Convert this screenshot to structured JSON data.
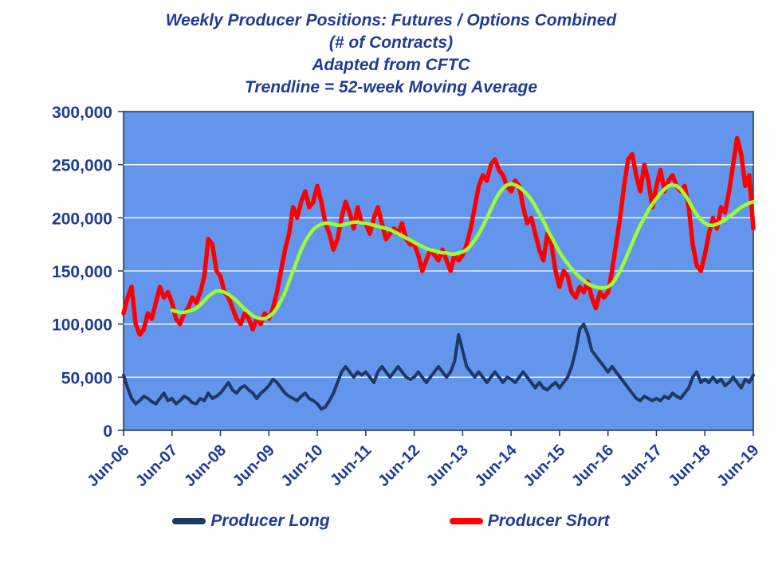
{
  "title_lines": [
    "Weekly Producer Positions: Futures / Options Combined",
    "(# of Contracts)",
    "Adapted from CFTC",
    "Trendline = 52-week Moving Average"
  ],
  "legend": {
    "items": [
      {
        "label": "Producer Long",
        "color": "#1F3864"
      },
      {
        "label": "Producer Short",
        "color": "#FF0000"
      }
    ]
  },
  "colors": {
    "plot_bg": "#6495ED",
    "grid": "#FFFFFF",
    "text": "#1E3C96",
    "axis": "#17375E"
  },
  "chart_data": {
    "type": "line",
    "title": "Weekly Producer Positions: Futures / Options Combined (# of Contracts) - Adapted from CFTC - Trendline = 52-week Moving Average",
    "xlabel": "",
    "ylabel": "",
    "x_unit": "months since Jun-2006",
    "months_total": 157,
    "x_tick_labels": [
      "Jun-06",
      "Jun-07",
      "Jun-08",
      "Jun-09",
      "Jun-10",
      "Jun-11",
      "Jun-12",
      "Jun-13",
      "Jun-14",
      "Jun-15",
      "Jun-16",
      "Jun-17",
      "Jun-18",
      "Jun-19"
    ],
    "x_tick_month_positions": [
      0,
      12,
      24,
      36,
      48,
      60,
      72,
      84,
      96,
      108,
      120,
      132,
      144,
      156
    ],
    "ylim": [
      0,
      300000
    ],
    "ytick_values": [
      0,
      50,
      100,
      150,
      200,
      250,
      300
    ],
    "ytick_labels": [
      "0",
      "50,000",
      "100,000",
      "150,000",
      "200,000",
      "250,000",
      "300,000"
    ],
    "value_unit": "contracts",
    "value_scale": 1000,
    "grid": true,
    "legend_position": "bottom",
    "series": [
      {
        "name": "Producer Long",
        "color": "#1F3864",
        "stroke_width": 4,
        "values": [
          52,
          40,
          30,
          25,
          28,
          32,
          30,
          27,
          25,
          30,
          35,
          28,
          30,
          25,
          28,
          32,
          30,
          26,
          25,
          30,
          28,
          35,
          30,
          32,
          35,
          40,
          45,
          38,
          35,
          40,
          42,
          38,
          35,
          30,
          35,
          38,
          42,
          48,
          45,
          40,
          35,
          32,
          30,
          28,
          32,
          35,
          30,
          28,
          25,
          20,
          22,
          28,
          35,
          45,
          55,
          60,
          55,
          50,
          55,
          52,
          55,
          50,
          45,
          55,
          60,
          55,
          50,
          55,
          60,
          55,
          50,
          48,
          50,
          55,
          50,
          45,
          50,
          55,
          60,
          55,
          50,
          55,
          65,
          90,
          75,
          60,
          55,
          50,
          55,
          50,
          45,
          50,
          55,
          50,
          45,
          50,
          48,
          45,
          50,
          55,
          50,
          45,
          40,
          45,
          40,
          38,
          42,
          45,
          40,
          45,
          50,
          60,
          75,
          95,
          100,
          90,
          75,
          70,
          65,
          60,
          55,
          60,
          55,
          50,
          45,
          40,
          35,
          30,
          28,
          32,
          30,
          28,
          30,
          28,
          32,
          30,
          35,
          32,
          30,
          35,
          40,
          50,
          55,
          45,
          48,
          45,
          50,
          45,
          48,
          42,
          45,
          50,
          45,
          40,
          48,
          45,
          52
        ]
      },
      {
        "name": "Producer Short",
        "color": "#FF0000",
        "stroke_width": 5.5,
        "values": [
          110,
          125,
          135,
          100,
          90,
          95,
          110,
          105,
          120,
          135,
          125,
          130,
          120,
          105,
          100,
          110,
          115,
          125,
          120,
          130,
          145,
          180,
          175,
          150,
          145,
          130,
          125,
          115,
          105,
          100,
          110,
          105,
          95,
          105,
          100,
          110,
          105,
          115,
          130,
          150,
          170,
          185,
          210,
          200,
          215,
          225,
          210,
          215,
          230,
          215,
          195,
          185,
          170,
          180,
          200,
          215,
          205,
          190,
          210,
          195,
          195,
          185,
          200,
          210,
          195,
          180,
          185,
          190,
          185,
          195,
          180,
          175,
          175,
          165,
          150,
          160,
          170,
          165,
          160,
          170,
          160,
          150,
          165,
          160,
          165,
          175,
          190,
          210,
          230,
          240,
          235,
          250,
          255,
          245,
          240,
          230,
          225,
          235,
          230,
          210,
          195,
          200,
          185,
          170,
          160,
          185,
          175,
          150,
          135,
          150,
          145,
          130,
          125,
          135,
          130,
          140,
          125,
          115,
          130,
          125,
          130,
          150,
          175,
          200,
          230,
          255,
          260,
          240,
          225,
          250,
          235,
          210,
          230,
          245,
          225,
          235,
          240,
          230,
          225,
          230,
          210,
          175,
          155,
          150,
          165,
          185,
          200,
          190,
          210,
          205,
          225,
          250,
          275,
          260,
          230,
          240,
          190
        ]
      },
      {
        "name": "52-week Moving Average Trendline",
        "color": "#99FF33",
        "stroke_width": 4.5,
        "values": [
          null,
          null,
          null,
          null,
          null,
          null,
          null,
          null,
          null,
          null,
          null,
          null,
          113,
          112,
          111,
          111,
          112,
          113,
          115,
          118,
          122,
          126,
          129,
          131,
          131,
          130,
          128,
          125,
          122,
          118,
          114,
          111,
          108,
          106,
          105,
          105,
          107,
          110,
          115,
          122,
          130,
          140,
          150,
          160,
          170,
          178,
          184,
          189,
          192,
          194,
          195,
          195,
          194,
          193,
          193,
          194,
          195,
          196,
          196,
          195,
          195,
          194,
          193,
          192,
          191,
          190,
          189,
          187,
          185,
          183,
          181,
          179,
          177,
          175,
          173,
          171,
          170,
          169,
          168,
          167,
          167,
          166,
          166,
          167,
          168,
          170,
          174,
          179,
          185,
          192,
          200,
          208,
          216,
          223,
          228,
          231,
          232,
          231,
          229,
          226,
          222,
          217,
          211,
          204,
          197,
          189,
          182,
          175,
          168,
          162,
          157,
          152,
          148,
          144,
          141,
          138,
          136,
          135,
          134,
          134,
          135,
          138,
          143,
          150,
          158,
          167,
          176,
          185,
          193,
          200,
          207,
          213,
          218,
          223,
          227,
          230,
          231,
          230,
          227,
          222,
          216,
          209,
          203,
          198,
          195,
          193,
          193,
          194,
          196,
          198,
          201,
          204,
          207,
          210,
          212,
          214,
          215
        ]
      }
    ]
  }
}
